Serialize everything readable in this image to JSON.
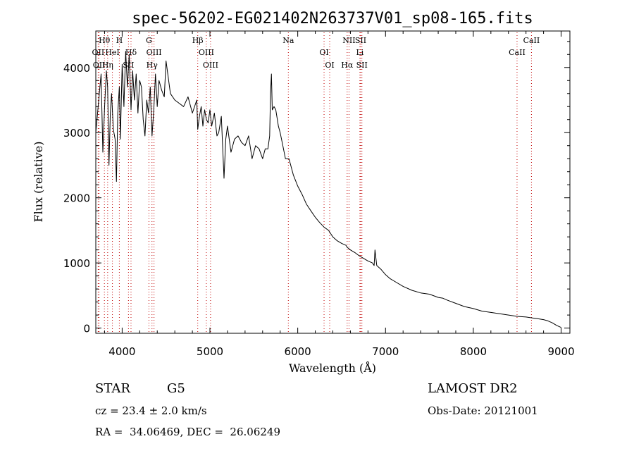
{
  "chart_data": {
    "type": "line",
    "title": "spec-56202-EG021402N263737V01_sp08-165.fits",
    "xlabel": "Wavelength (Å)",
    "ylabel": "Flux (relative)",
    "xlim": [
      3700,
      9100
    ],
    "ylim": [
      -80,
      4560
    ],
    "xticks": [
      4000,
      5000,
      6000,
      7000,
      8000,
      9000
    ],
    "xtick_labels": [
      "4000",
      "5000",
      "6000",
      "7000",
      "8000",
      "9000"
    ],
    "yticks": [
      0,
      1000,
      2000,
      3000,
      4000
    ],
    "ytick_labels": [
      "0",
      "1000",
      "2000",
      "3000",
      "4000"
    ],
    "series": [
      {
        "x": [
          3700,
          3720,
          3740,
          3760,
          3780,
          3800,
          3820,
          3835,
          3850,
          3865,
          3880,
          3900,
          3920,
          3935,
          3950,
          3968,
          3980,
          4000,
          4020,
          4040,
          4060,
          4080,
          4101,
          4120,
          4140,
          4160,
          4180,
          4200,
          4220,
          4240,
          4260,
          4280,
          4300,
          4320,
          4340,
          4360,
          4380,
          4400,
          4420,
          4450,
          4480,
          4500,
          4550,
          4600,
          4650,
          4700,
          4750,
          4800,
          4850,
          4861,
          4880,
          4900,
          4920,
          4940,
          4960,
          4980,
          5000,
          5020,
          5050,
          5080,
          5100,
          5130,
          5160,
          5180,
          5200,
          5240,
          5280,
          5320,
          5360,
          5400,
          5440,
          5480,
          5520,
          5560,
          5600,
          5630,
          5660,
          5680,
          5690,
          5700,
          5710,
          5730,
          5750,
          5780,
          5800,
          5830,
          5860,
          5890,
          5900,
          5920,
          5950,
          6000,
          6050,
          6100,
          6150,
          6200,
          6250,
          6300,
          6350,
          6400,
          6450,
          6500,
          6550,
          6563,
          6600,
          6650,
          6700,
          6750,
          6800,
          6850,
          6870,
          6880,
          6900,
          6950,
          7000,
          7050,
          7100,
          7200,
          7300,
          7400,
          7500,
          7600,
          7650,
          7700,
          7800,
          7900,
          8000,
          8100,
          8200,
          8300,
          8400,
          8500,
          8600,
          8700,
          8800,
          8850,
          8900,
          8950,
          9000
        ],
        "y": [
          3000,
          3300,
          3600,
          3900,
          2700,
          3400,
          3950,
          3700,
          2500,
          3300,
          3600,
          3050,
          2900,
          2250,
          3300,
          3700,
          2900,
          4050,
          3400,
          4250,
          3700,
          4200,
          3350,
          3950,
          3500,
          3900,
          3300,
          3800,
          3700,
          3200,
          2950,
          3500,
          3300,
          3700,
          2950,
          3350,
          3900,
          3400,
          3800,
          3650,
          3550,
          4100,
          3600,
          3500,
          3450,
          3400,
          3550,
          3300,
          3500,
          3050,
          3250,
          3400,
          3100,
          3350,
          3200,
          3150,
          3350,
          3100,
          3300,
          2950,
          3000,
          3250,
          2300,
          2900,
          3100,
          2700,
          2900,
          2950,
          2850,
          2800,
          2950,
          2600,
          2800,
          2750,
          2600,
          2750,
          2750,
          2950,
          3600,
          3900,
          3350,
          3400,
          3350,
          3100,
          3000,
          2800,
          2600,
          2600,
          2600,
          2500,
          2350,
          2180,
          2050,
          1900,
          1800,
          1700,
          1620,
          1550,
          1500,
          1400,
          1340,
          1300,
          1270,
          1240,
          1200,
          1160,
          1110,
          1070,
          1030,
          1000,
          960,
          1200,
          960,
          900,
          820,
          760,
          720,
          640,
          580,
          540,
          520,
          470,
          460,
          430,
          380,
          330,
          300,
          260,
          240,
          220,
          200,
          180,
          170,
          150,
          130,
          110,
          80,
          40,
          10
        ]
      }
    ],
    "lines": [
      {
        "name": "Hθ",
        "x": 3798,
        "row": 1
      },
      {
        "name": "OII",
        "x": 3727,
        "row": 2
      },
      {
        "name": "OII",
        "x": 3737,
        "row": 3
      },
      {
        "name": "Hη",
        "x": 3835,
        "row": 3
      },
      {
        "name": "HeI",
        "x": 3889,
        "row": 2
      },
      {
        "name": "H",
        "x": 3968,
        "row": 1
      },
      {
        "name": "Hδ",
        "x": 4101,
        "row": 2
      },
      {
        "name": "SII",
        "x": 4072,
        "row": 3
      },
      {
        "name": "G",
        "x": 4305,
        "row": 1
      },
      {
        "name": "OIII",
        "x": 4363,
        "row": 2
      },
      {
        "name": "Hγ",
        "x": 4340,
        "row": 3
      },
      {
        "name": "Hβ",
        "x": 4861,
        "row": 1
      },
      {
        "name": "OIII",
        "x": 4959,
        "row": 2
      },
      {
        "name": "OIII",
        "x": 5007,
        "row": 3
      },
      {
        "name": "Na",
        "x": 5893,
        "row": 1
      },
      {
        "name": "OI",
        "x": 6300,
        "row": 2
      },
      {
        "name": "OI",
        "x": 6364,
        "row": 3
      },
      {
        "name": "NII",
        "x": 6584,
        "row": 1
      },
      {
        "name": "SII",
        "x": 6717,
        "row": 1
      },
      {
        "name": "Li",
        "x": 6708,
        "row": 2
      },
      {
        "name": "Hα",
        "x": 6563,
        "row": 3
      },
      {
        "name": "SII",
        "x": 6731,
        "row": 3
      },
      {
        "name": "CaII",
        "x": 8662,
        "row": 1
      },
      {
        "name": "CaII",
        "x": 8498,
        "row": 2
      }
    ]
  },
  "info": {
    "class": "STAR",
    "subclass": "G5",
    "survey": "LAMOST DR2",
    "cz": "cz = 23.4 ± 2.0 km/s",
    "obs_date": "Obs-Date: 20121001",
    "coords": "RA =  34.06469, DEC =  26.06249"
  }
}
